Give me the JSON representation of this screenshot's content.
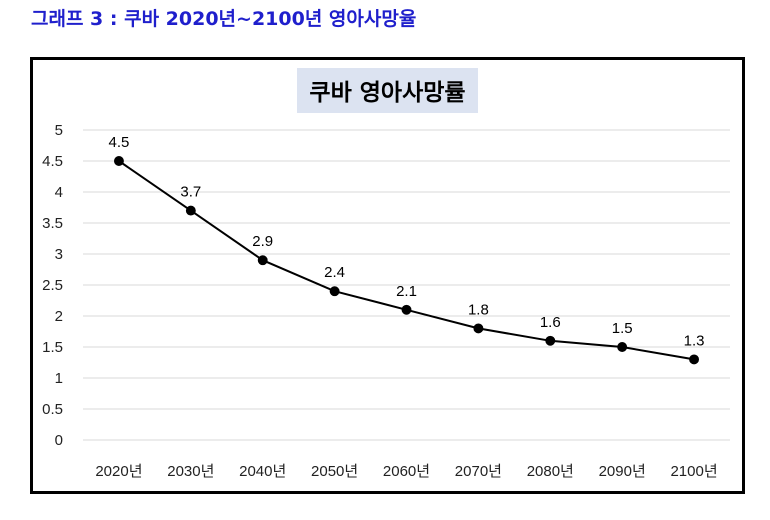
{
  "page": {
    "heading": "그래프 3 : 쿠바 2020년~2100년 영아사망율"
  },
  "colors": {
    "heading": "#1f1fcc",
    "title_background": "#dce3f1",
    "line": "#000000",
    "grid": "#d9d9d9"
  },
  "chart_data": {
    "type": "line",
    "title": "쿠바 영아사망률",
    "xlabel": "",
    "ylabel": "",
    "categories": [
      "2020년",
      "2030년",
      "2040년",
      "2050년",
      "2060년",
      "2070년",
      "2080년",
      "2090년",
      "2100년"
    ],
    "series": [
      {
        "values": [
          4.5,
          3.7,
          2.9,
          2.4,
          2.1,
          1.8,
          1.6,
          1.5,
          1.3
        ]
      }
    ],
    "ylim": [
      0,
      5
    ],
    "yticks": [
      0,
      0.5,
      1,
      1.5,
      2,
      2.5,
      3,
      3.5,
      4,
      4.5,
      5
    ],
    "ytick_labels": [
      "0",
      "0.5",
      "1",
      "1.5",
      "2",
      "2.5",
      "3",
      "3.5",
      "4",
      "4.5",
      "5"
    ],
    "data_labels": [
      "4.5",
      "3.7",
      "2.9",
      "2.4",
      "2.1",
      "1.8",
      "1.6",
      "1.5",
      "1.3"
    ],
    "grid": true,
    "legend": "none",
    "markers": "circle"
  }
}
